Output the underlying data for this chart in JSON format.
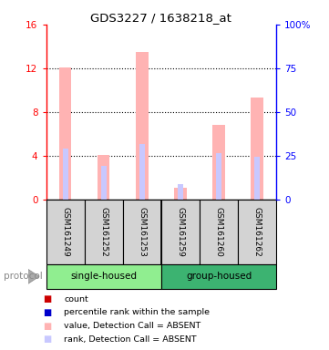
{
  "title": "GDS3227 / 1638218_at",
  "samples": [
    "GSM161249",
    "GSM161252",
    "GSM161253",
    "GSM161259",
    "GSM161260",
    "GSM161262"
  ],
  "bar_values": [
    12.1,
    4.1,
    13.5,
    1.1,
    6.8,
    9.3
  ],
  "rank_values": [
    29.0,
    19.4,
    31.9,
    8.75,
    26.25,
    24.4
  ],
  "bar_color": "#ffb3b3",
  "rank_color": "#c8c8ff",
  "ylim_left": [
    0,
    16
  ],
  "ylim_right": [
    0,
    100
  ],
  "yticks_left": [
    0,
    4,
    8,
    12,
    16
  ],
  "ytick_labels_left": [
    "0",
    "4",
    "8",
    "12",
    "16"
  ],
  "yticks_right": [
    0,
    25,
    50,
    75,
    100
  ],
  "ytick_labels_right": [
    "0",
    "25",
    "50",
    "75",
    "100%"
  ],
  "left_axis_color": "red",
  "right_axis_color": "blue",
  "bg_color": "#ffffff",
  "sample_box_color": "#d3d3d3",
  "single_housed_color": "#90ee90",
  "group_housed_color": "#3cb371",
  "legend_items": [
    {
      "color": "#cc0000",
      "label": "count"
    },
    {
      "color": "#0000cc",
      "label": "percentile rank within the sample"
    },
    {
      "color": "#ffb3b3",
      "label": "value, Detection Call = ABSENT"
    },
    {
      "color": "#c8c8ff",
      "label": "rank, Detection Call = ABSENT"
    }
  ],
  "figsize": [
    3.61,
    3.84
  ],
  "dpi": 100
}
